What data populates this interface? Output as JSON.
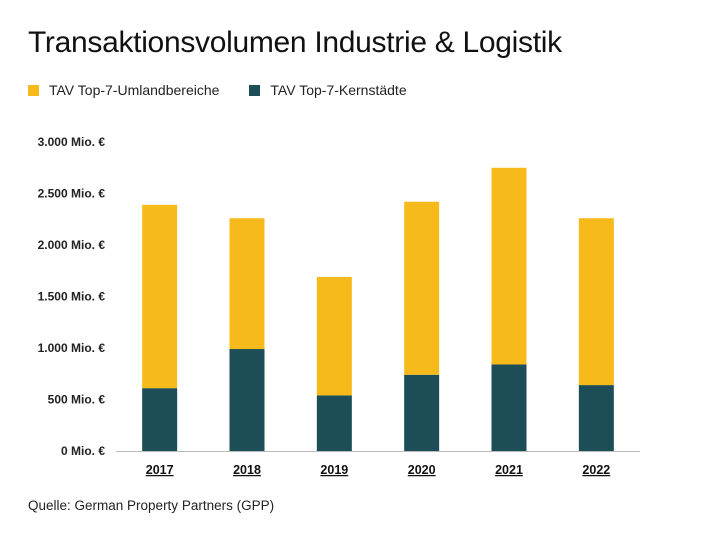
{
  "title": "Transaktionsvolumen Industrie & Logistik",
  "source": "Quelle: German Property Partners (GPP)",
  "colors": {
    "umland": "#F6BA1B",
    "kern": "#1D4E57"
  },
  "chart_data": {
    "type": "bar",
    "stacked": true,
    "title": "Transaktionsvolumen Industrie & Logistik",
    "categories": [
      "2017",
      "2018",
      "2019",
      "2020",
      "2021",
      "2022"
    ],
    "series": [
      {
        "name": "TAV Top-7-Kernstädte",
        "values": [
          610,
          990,
          540,
          740,
          840,
          640
        ]
      },
      {
        "name": "TAV Top-7-Umlandbereiche",
        "values": [
          1780,
          1270,
          1150,
          1680,
          1910,
          1620
        ]
      }
    ],
    "legend_order": [
      "TAV Top-7-Umlandbereiche",
      "TAV Top-7-Kernstädte"
    ],
    "yticks": [
      {
        "value": 0,
        "label": "0 Mio. €"
      },
      {
        "value": 500,
        "label": "500 Mio. €"
      },
      {
        "value": 1000,
        "label": "1.000 Mio. €"
      },
      {
        "value": 1500,
        "label": "1.500 Mio. €"
      },
      {
        "value": 2000,
        "label": "2.000 Mio. €"
      },
      {
        "value": 2500,
        "label": "2.500 Mio. €"
      },
      {
        "value": 3000,
        "label": "3.000 Mio. €"
      }
    ],
    "ylim": [
      0,
      3000
    ],
    "grid": false,
    "legend_position": "top-left"
  }
}
